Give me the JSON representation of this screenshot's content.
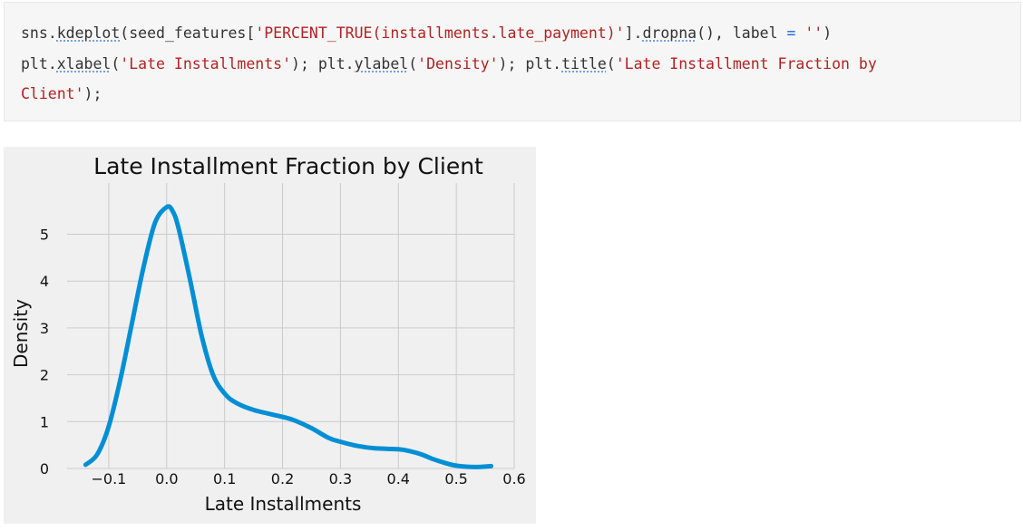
{
  "code": {
    "line1": [
      {
        "t": "sns",
        "c": ""
      },
      {
        "t": ".",
        "c": ""
      },
      {
        "t": "kdeplot",
        "c": "fn"
      },
      {
        "t": "(seed_features[",
        "c": ""
      },
      {
        "t": "'PERCENT_TRUE(installments.late_payment)'",
        "c": "str"
      },
      {
        "t": "]",
        "c": ""
      },
      {
        "t": ".",
        "c": ""
      },
      {
        "t": "dropna",
        "c": "fn"
      },
      {
        "t": "(), label ",
        "c": ""
      },
      {
        "t": "=",
        "c": "op"
      },
      {
        "t": " ",
        "c": ""
      },
      {
        "t": "''",
        "c": "str"
      },
      {
        "t": ")",
        "c": ""
      }
    ],
    "line2": [
      {
        "t": "plt",
        "c": ""
      },
      {
        "t": ".",
        "c": ""
      },
      {
        "t": "xlabel",
        "c": "fn"
      },
      {
        "t": "(",
        "c": ""
      },
      {
        "t": "'Late Installments'",
        "c": "str"
      },
      {
        "t": "); plt",
        "c": ""
      },
      {
        "t": ".",
        "c": ""
      },
      {
        "t": "ylabel",
        "c": "fn"
      },
      {
        "t": "(",
        "c": ""
      },
      {
        "t": "'Density'",
        "c": "str"
      },
      {
        "t": "); plt",
        "c": ""
      },
      {
        "t": ".",
        "c": ""
      },
      {
        "t": "title",
        "c": "fn"
      },
      {
        "t": "(",
        "c": ""
      },
      {
        "t": "'Late Installment Fraction by",
        "c": "str"
      }
    ],
    "line3": [
      {
        "t": "Client'",
        "c": "str"
      },
      {
        "t": ");",
        "c": ""
      }
    ]
  },
  "chart_data": {
    "type": "line",
    "title": "Late Installment Fraction by Client",
    "xlabel": "Late Installments",
    "ylabel": "Density",
    "xlim": [
      -0.15,
      0.6
    ],
    "ylim": [
      0,
      5.9
    ],
    "xticks": [
      -0.1,
      0.0,
      0.1,
      0.2,
      0.3,
      0.4,
      0.5,
      0.6
    ],
    "xtick_labels": [
      "−0.1",
      "0.0",
      "0.1",
      "0.2",
      "0.3",
      "0.4",
      "0.5",
      "0.6"
    ],
    "yticks": [
      0,
      1,
      2,
      3,
      4,
      5
    ],
    "ytick_labels": [
      "0",
      "1",
      "2",
      "3",
      "4",
      "5"
    ],
    "grid": true,
    "color": "#008fd5",
    "background": "#f0f0f0",
    "series": [
      {
        "x": [
          -0.14,
          -0.12,
          -0.1,
          -0.08,
          -0.06,
          -0.04,
          -0.02,
          0.0,
          0.01,
          0.02,
          0.04,
          0.06,
          0.08,
          0.1,
          0.12,
          0.15,
          0.2,
          0.22,
          0.25,
          0.28,
          0.3,
          0.33,
          0.36,
          0.4,
          0.42,
          0.44,
          0.46,
          0.48,
          0.5,
          0.53,
          0.56
        ],
        "y": [
          0.08,
          0.3,
          0.9,
          1.9,
          3.1,
          4.3,
          5.25,
          5.58,
          5.5,
          5.15,
          4.05,
          2.85,
          2.0,
          1.6,
          1.4,
          1.25,
          1.1,
          1.03,
          0.86,
          0.65,
          0.57,
          0.48,
          0.43,
          0.41,
          0.37,
          0.3,
          0.2,
          0.12,
          0.06,
          0.03,
          0.05
        ]
      }
    ]
  }
}
